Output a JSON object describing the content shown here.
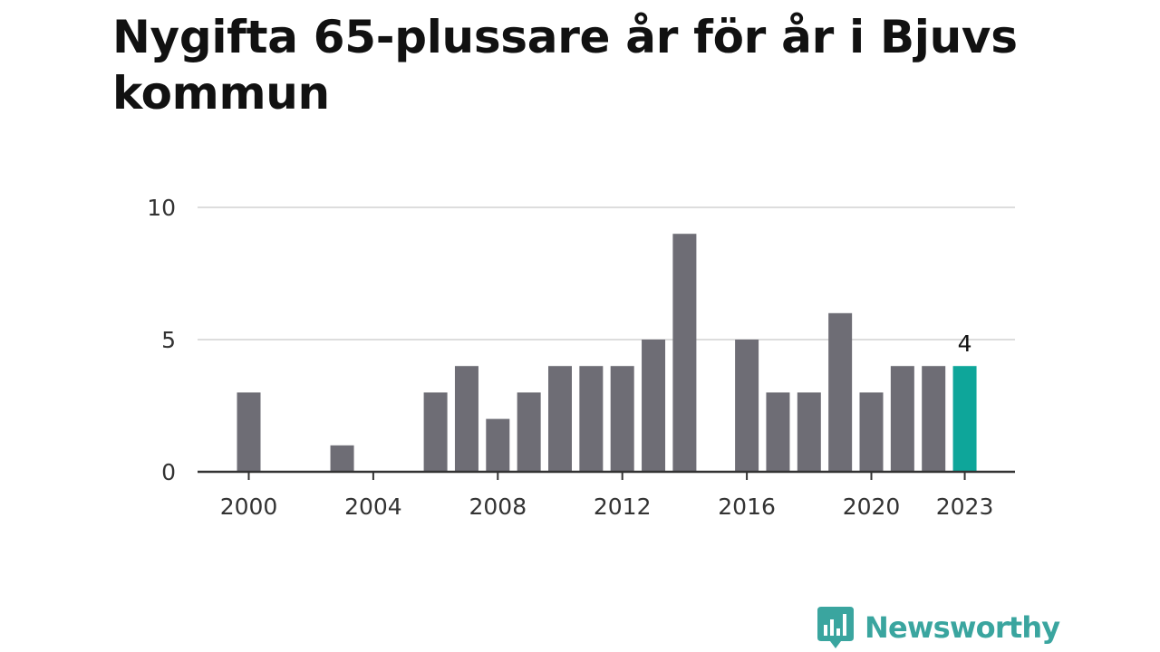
{
  "chart_data": {
    "type": "bar",
    "title": "Nygifta 65-plussare år för år i Bjuvs kommun",
    "xlabel": "",
    "ylabel": "",
    "categories": [
      "2000",
      "2001",
      "2002",
      "2003",
      "2004",
      "2005",
      "2006",
      "2007",
      "2008",
      "2009",
      "2010",
      "2011",
      "2012",
      "2013",
      "2014",
      "2015",
      "2016",
      "2017",
      "2018",
      "2019",
      "2020",
      "2021",
      "2022",
      "2023"
    ],
    "values": [
      3,
      0,
      0,
      1,
      0,
      0,
      3,
      4,
      2,
      3,
      4,
      4,
      4,
      5,
      9,
      0,
      5,
      3,
      3,
      6,
      3,
      4,
      4,
      4
    ],
    "x_tick_labels": [
      "2000",
      "2004",
      "2008",
      "2012",
      "2016",
      "2020",
      "2023"
    ],
    "y_ticks": [
      0,
      5,
      10
    ],
    "ylim": [
      0,
      10
    ],
    "grid": true,
    "highlight_category": "2023",
    "highlight_label": "4",
    "colors": {
      "bar": "#6e6d75",
      "highlight": "#0ea69a",
      "grid": "#dddddd",
      "axis": "#333333"
    }
  },
  "brand": {
    "name": "Newsworthy",
    "icon": "newsworthy-logo-icon",
    "color": "#3aa59f"
  }
}
